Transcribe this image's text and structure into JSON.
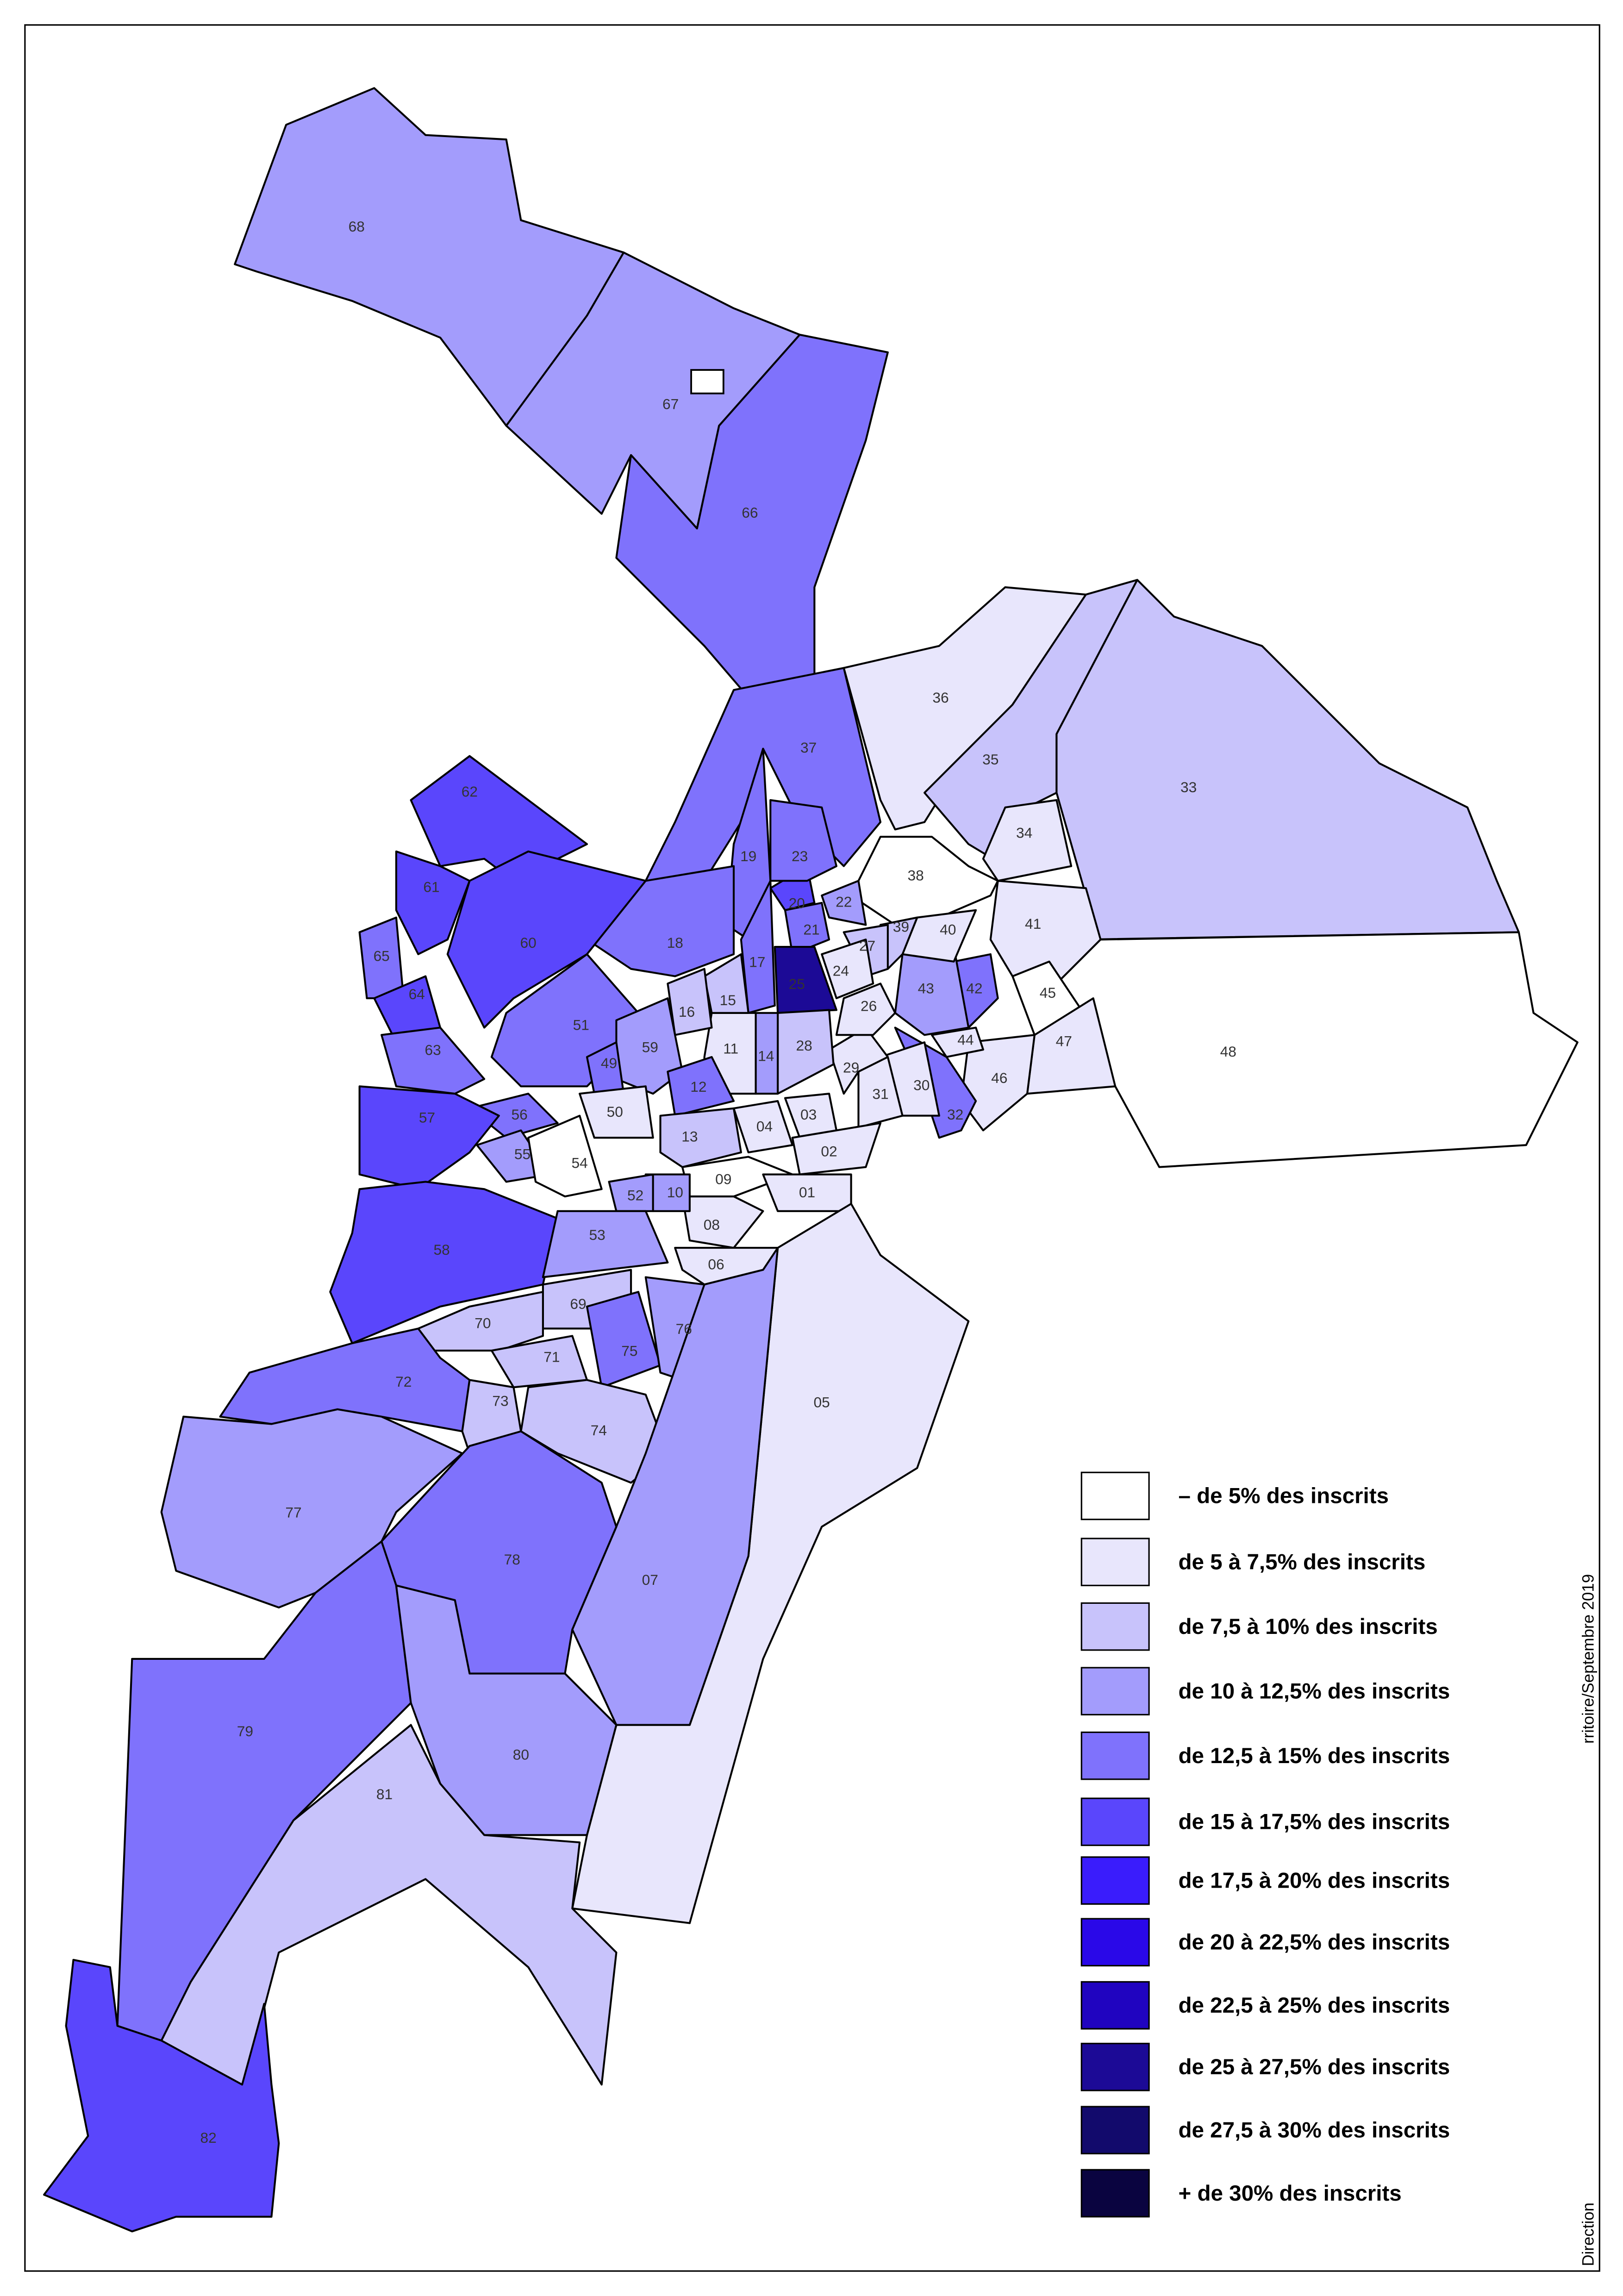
{
  "map": {
    "districts": [
      {
        "label": "68",
        "color": "#a39cfc"
      },
      {
        "label": "67",
        "color": "#a39cfc"
      },
      {
        "label": "66",
        "color": "#7f72fc"
      },
      {
        "label": "37",
        "color": "#7f72fc"
      },
      {
        "label": "36",
        "color": "#e8e6fc"
      },
      {
        "label": "35",
        "color": "#c8c3fb"
      },
      {
        "label": "33",
        "color": "#c8c3fb"
      },
      {
        "label": "34",
        "color": "#e8e6fc"
      },
      {
        "label": "38",
        "color": "#ffffff"
      },
      {
        "label": "41",
        "color": "#e8e6fc"
      },
      {
        "label": "48",
        "color": "#ffffff"
      },
      {
        "label": "45",
        "color": "#ffffff"
      },
      {
        "label": "47",
        "color": "#e8e6fc"
      },
      {
        "label": "46",
        "color": "#e8e6fc"
      },
      {
        "label": "42",
        "color": "#7f72fc"
      },
      {
        "label": "43",
        "color": "#a39cfc"
      },
      {
        "label": "44",
        "color": "#e8e6fc"
      },
      {
        "label": "40",
        "color": "#e8e6fc"
      },
      {
        "label": "39",
        "color": "#c8c3fb"
      },
      {
        "label": "32",
        "color": "#7f72fc"
      },
      {
        "label": "30",
        "color": "#e8e6fc"
      },
      {
        "label": "31",
        "color": "#e8e6fc"
      },
      {
        "label": "29",
        "color": "#e8e6fc"
      },
      {
        "label": "26",
        "color": "#e8e6fc"
      },
      {
        "label": "27",
        "color": "#c8c3fb"
      },
      {
        "label": "24",
        "color": "#e8e6fc"
      },
      {
        "label": "22",
        "color": "#a39cfc"
      },
      {
        "label": "21",
        "color": "#7f72fc"
      },
      {
        "label": "20",
        "color": "#5a46fc"
      },
      {
        "label": "23",
        "color": "#7f72fc"
      },
      {
        "label": "19",
        "color": "#7f72fc"
      },
      {
        "label": "17",
        "color": "#7f72fc"
      },
      {
        "label": "25",
        "color": "#1c0a96"
      },
      {
        "label": "28",
        "color": "#c8c3fb"
      },
      {
        "label": "14",
        "color": "#a39cfc"
      },
      {
        "label": "11",
        "color": "#e8e6fc"
      },
      {
        "label": "15",
        "color": "#c8c3fb"
      },
      {
        "label": "16",
        "color": "#c8c3fb"
      },
      {
        "label": "18",
        "color": "#7f72fc"
      },
      {
        "label": "62",
        "color": "#5a46fc"
      },
      {
        "label": "61",
        "color": "#5a46fc"
      },
      {
        "label": "60",
        "color": "#5a46fc"
      },
      {
        "label": "65",
        "color": "#7f72fc"
      },
      {
        "label": "64",
        "color": "#5a46fc"
      },
      {
        "label": "63",
        "color": "#7f72fc"
      },
      {
        "label": "51",
        "color": "#7f72fc"
      },
      {
        "label": "59",
        "color": "#a39cfc"
      },
      {
        "label": "49",
        "color": "#7f72fc"
      },
      {
        "label": "12",
        "color": "#7f72fc"
      },
      {
        "label": "50",
        "color": "#e8e6fc"
      },
      {
        "label": "56",
        "color": "#7f72fc"
      },
      {
        "label": "55",
        "color": "#a39cfc"
      },
      {
        "label": "54",
        "color": "#ffffff"
      },
      {
        "label": "57",
        "color": "#5a46fc"
      },
      {
        "label": "58",
        "color": "#5a46fc"
      },
      {
        "label": "13",
        "color": "#c8c3fb"
      },
      {
        "label": "04",
        "color": "#e8e6fc"
      },
      {
        "label": "03",
        "color": "#e8e6fc"
      },
      {
        "label": "02",
        "color": "#e8e6fc"
      },
      {
        "label": "09",
        "color": "#ffffff"
      },
      {
        "label": "01",
        "color": "#e8e6fc"
      },
      {
        "label": "08",
        "color": "#e8e6fc"
      },
      {
        "label": "10",
        "color": "#a39cfc"
      },
      {
        "label": "52",
        "color": "#a39cfc"
      },
      {
        "label": "53",
        "color": "#a39cfc"
      },
      {
        "label": "06",
        "color": "#e8e6fc"
      },
      {
        "label": "69",
        "color": "#c8c3fb"
      },
      {
        "label": "70",
        "color": "#c8c3fb"
      },
      {
        "label": "71",
        "color": "#c8c3fb"
      },
      {
        "label": "75",
        "color": "#7f72fc"
      },
      {
        "label": "76",
        "color": "#a39cfc"
      },
      {
        "label": "72",
        "color": "#7f72fc"
      },
      {
        "label": "73",
        "color": "#c8c3fb"
      },
      {
        "label": "74",
        "color": "#c8c3fb"
      },
      {
        "label": "05",
        "color": "#e8e6fc"
      },
      {
        "label": "07",
        "color": "#a39cfc"
      },
      {
        "label": "77",
        "color": "#a39cfc"
      },
      {
        "label": "78",
        "color": "#7f72fc"
      },
      {
        "label": "79",
        "color": "#7f72fc"
      },
      {
        "label": "80",
        "color": "#a39cfc"
      },
      {
        "label": "81",
        "color": "#c8c3fb"
      },
      {
        "label": "82",
        "color": "#5a46fc"
      }
    ],
    "legend": [
      {
        "label": "–  de 5% des inscrits",
        "color": "#ffffff"
      },
      {
        "label": "de  5 à 7,5% des inscrits",
        "color": "#e8e6fc"
      },
      {
        "label": "de  7,5 à 10% des inscrits",
        "color": "#c8c3fb"
      },
      {
        "label": "de  10 à 12,5% des inscrits",
        "color": "#a39cfc"
      },
      {
        "label": "de  12,5 à 15% des inscrits",
        "color": "#7f72fc"
      },
      {
        "label": "de  15 à 17,5% des inscrits",
        "color": "#5a46fc"
      },
      {
        "label": "de  17,5 à 20% des inscrits",
        "color": "#3a1cfc"
      },
      {
        "label": "de  20 à 22,5% des inscrits",
        "color": "#2a08e8"
      },
      {
        "label": "de  22,5 à 25% des inscrits",
        "color": "#2004c0"
      },
      {
        "label": "de  25 à 27,5% des inscrits",
        "color": "#1c0a96"
      },
      {
        "label": "de  27,5 à 30% des inscrits",
        "color": "#120a6c"
      },
      {
        "label": "+ de 30% des inscrits",
        "color": "#0a0440"
      }
    ],
    "side_texts": [
      "rritoire/Septembre 2019",
      "Direction"
    ]
  }
}
